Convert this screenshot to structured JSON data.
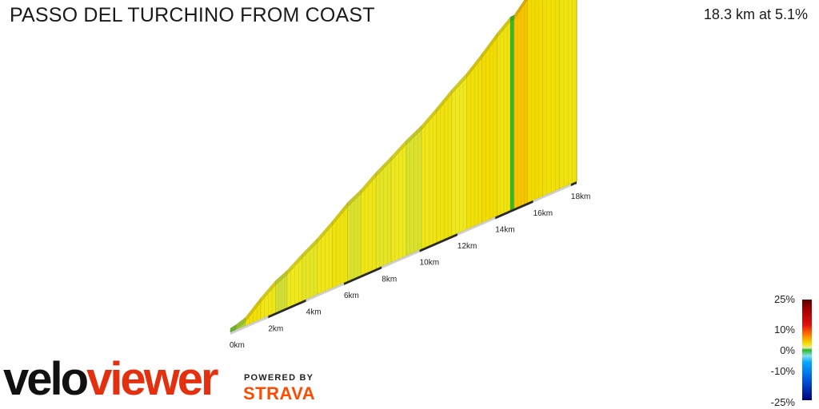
{
  "header": {
    "title": "PASSO DEL TURCHINO FROM COAST",
    "summary": "18.3 km at 5.1%"
  },
  "legend": {
    "labels": [
      "25%",
      "10%",
      "0%",
      "-10%",
      "-25%"
    ]
  },
  "branding": {
    "logo_part1": "velo",
    "logo_part2": "viewer",
    "powered_by": "POWERED BY",
    "strava": "STRAVA",
    "logo_color": "#e53010",
    "strava_color": "#fc4c02"
  },
  "chart_data": {
    "type": "area",
    "title": "PASSO DEL TURCHINO FROM COAST",
    "subtitle": "18.3 km at 5.1%",
    "x_unit": "km",
    "xlim": [
      0,
      18.3
    ],
    "x_ticks": [
      "0km",
      "2km",
      "4km",
      "6km",
      "8km",
      "10km",
      "12km",
      "14km",
      "16km",
      "18km"
    ],
    "x_tick_values": [
      0,
      2,
      4,
      6,
      8,
      10,
      12,
      14,
      16,
      18
    ],
    "gradient_scale": {
      "min": -25,
      "max": 25,
      "stops": [
        {
          "value": 25,
          "color": "#5a0000"
        },
        {
          "value": 10,
          "color": "#f2e400"
        },
        {
          "value": 0,
          "color": "#22bb22"
        },
        {
          "value": -10,
          "color": "#00aaff"
        },
        {
          "value": -25,
          "color": "#00007a"
        }
      ]
    },
    "segments": [
      {
        "start": 0.0,
        "end": 0.3,
        "gradient": 1.5
      },
      {
        "start": 0.3,
        "end": 0.8,
        "gradient": 2.5
      },
      {
        "start": 0.8,
        "end": 1.6,
        "gradient": 6.5
      },
      {
        "start": 1.6,
        "end": 2.4,
        "gradient": 5.5
      },
      {
        "start": 2.4,
        "end": 3.0,
        "gradient": 3.5
      },
      {
        "start": 3.0,
        "end": 3.8,
        "gradient": 5.0
      },
      {
        "start": 3.8,
        "end": 4.6,
        "gradient": 4.5
      },
      {
        "start": 4.6,
        "end": 5.4,
        "gradient": 5.5
      },
      {
        "start": 5.4,
        "end": 6.2,
        "gradient": 6.0
      },
      {
        "start": 6.2,
        "end": 6.9,
        "gradient": 4.0
      },
      {
        "start": 6.9,
        "end": 7.7,
        "gradient": 5.5
      },
      {
        "start": 7.7,
        "end": 8.5,
        "gradient": 4.5
      },
      {
        "start": 8.5,
        "end": 9.3,
        "gradient": 5.0
      },
      {
        "start": 9.3,
        "end": 10.1,
        "gradient": 4.0
      },
      {
        "start": 10.1,
        "end": 10.9,
        "gradient": 5.5
      },
      {
        "start": 10.9,
        "end": 11.7,
        "gradient": 6.0
      },
      {
        "start": 11.7,
        "end": 12.5,
        "gradient": 5.0
      },
      {
        "start": 12.5,
        "end": 13.3,
        "gradient": 6.5
      },
      {
        "start": 13.3,
        "end": 14.1,
        "gradient": 7.0
      },
      {
        "start": 14.1,
        "end": 14.8,
        "gradient": 6.0
      },
      {
        "start": 14.8,
        "end": 15.0,
        "gradient": 0.5
      },
      {
        "start": 15.0,
        "end": 15.7,
        "gradient": 8.0
      },
      {
        "start": 15.7,
        "end": 16.5,
        "gradient": 7.0
      },
      {
        "start": 16.5,
        "end": 17.4,
        "gradient": 6.5
      },
      {
        "start": 17.4,
        "end": 18.3,
        "gradient": 6.0
      }
    ]
  }
}
